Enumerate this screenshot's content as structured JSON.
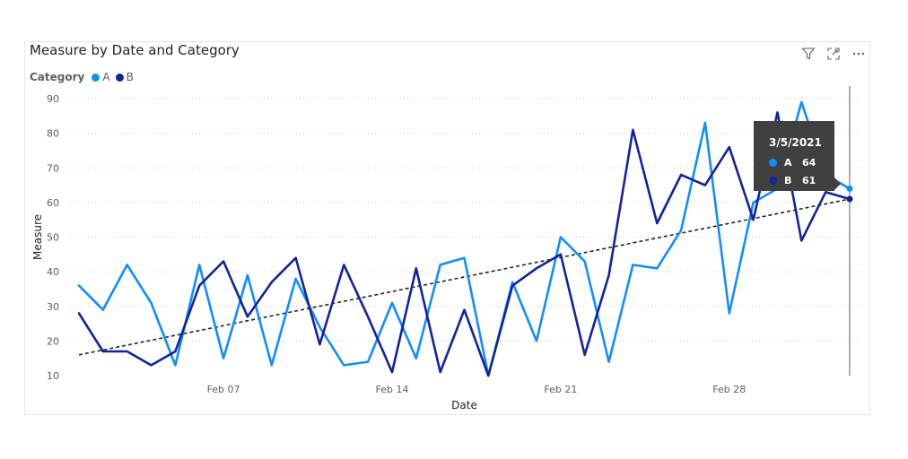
{
  "visual": {
    "title": "Measure by Date and Category"
  },
  "toolbar": {
    "filter_icon": "filter-icon",
    "focus_icon": "focus-mode-icon",
    "more_icon": "more-options-icon"
  },
  "legend": {
    "title": "Category",
    "items": [
      {
        "label": "A",
        "color": "#118DFF"
      },
      {
        "label": "B",
        "color": "#12239E"
      }
    ]
  },
  "tooltip": {
    "date": "3/5/2021",
    "rows": [
      {
        "label": "A",
        "value": "64",
        "color": "#118DFF"
      },
      {
        "label": "B",
        "value": "61",
        "color": "#12239E"
      }
    ]
  },
  "chart_data": {
    "type": "line",
    "xlabel": "Date",
    "ylabel": "Measure",
    "ylim": [
      10,
      90
    ],
    "yticks": [
      10,
      20,
      30,
      40,
      50,
      60,
      70,
      80,
      90
    ],
    "x_range": [
      "2021-02-01",
      "2021-03-05"
    ],
    "x_ticks": [
      {
        "date": "2021-02-07",
        "label": "Feb 07"
      },
      {
        "date": "2021-02-14",
        "label": "Feb 14"
      },
      {
        "date": "2021-02-21",
        "label": "Feb 21"
      },
      {
        "date": "2021-02-28",
        "label": "Feb 28"
      }
    ],
    "grid": true,
    "legend_position": "top-left",
    "x": [
      "2021-02-01",
      "2021-02-02",
      "2021-02-03",
      "2021-02-04",
      "2021-02-05",
      "2021-02-06",
      "2021-02-07",
      "2021-02-08",
      "2021-02-09",
      "2021-02-10",
      "2021-02-11",
      "2021-02-12",
      "2021-02-13",
      "2021-02-14",
      "2021-02-15",
      "2021-02-16",
      "2021-02-17",
      "2021-02-18",
      "2021-02-19",
      "2021-02-20",
      "2021-02-21",
      "2021-02-22",
      "2021-02-23",
      "2021-02-24",
      "2021-02-25",
      "2021-02-26",
      "2021-02-27",
      "2021-02-28",
      "2021-03-01",
      "2021-03-02",
      "2021-03-03",
      "2021-03-04",
      "2021-03-05"
    ],
    "series": [
      {
        "name": "A",
        "color": "#118DFF",
        "values": [
          36,
          29,
          42,
          31,
          13,
          42,
          15,
          39,
          13,
          38,
          24,
          13,
          14,
          31,
          15,
          42,
          44,
          10,
          37,
          20,
          50,
          43,
          14,
          42,
          41,
          52,
          83,
          28,
          60,
          64,
          89,
          68,
          64
        ]
      },
      {
        "name": "B",
        "color": "#12239E",
        "values": [
          28,
          17,
          17,
          13,
          17,
          36,
          43,
          27,
          37,
          44,
          19,
          42,
          27,
          11,
          41,
          11,
          29,
          10,
          36,
          41,
          45,
          16,
          39,
          81,
          54,
          68,
          65,
          76,
          55,
          86,
          49,
          63,
          61
        ]
      }
    ],
    "trendline": {
      "style": "dashed",
      "color": "#252423",
      "start": [
        "2021-02-01",
        16
      ],
      "end": [
        "2021-03-05",
        61
      ]
    },
    "selected_date": "2021-03-05"
  }
}
